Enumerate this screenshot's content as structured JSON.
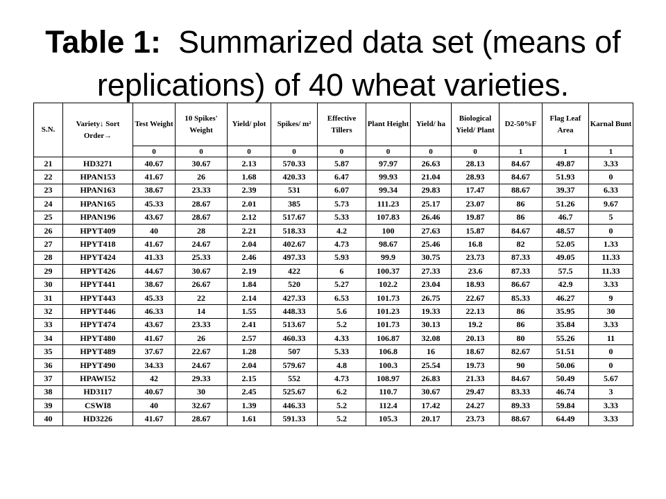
{
  "title": {
    "label": "Table 1:",
    "text": "Summarized data set (means of replications) of 40 wheat varieties."
  },
  "table": {
    "headers": [
      "S.N.",
      "Variety↓ Sort Order→",
      "Test Weight",
      "10 Spikes' Weight",
      "Yield/ plot",
      "Spikes/ m²",
      "Effective Tillers",
      "Plant Height",
      "Yield/ ha",
      "Biological Yield/ Plant",
      "D2-50%F",
      "Flag Leaf Area",
      "Karnal Bunt"
    ],
    "sort_order": [
      "0",
      "0",
      "0",
      "0",
      "0",
      "0",
      "0",
      "0",
      "1",
      "1",
      "1"
    ],
    "rows": [
      [
        "21",
        "HD3271",
        "40.67",
        "30.67",
        "2.13",
        "570.33",
        "5.87",
        "97.97",
        "26.63",
        "28.13",
        "84.67",
        "49.87",
        "3.33"
      ],
      [
        "22",
        "HPAN153",
        "41.67",
        "26",
        "1.68",
        "420.33",
        "6.47",
        "99.93",
        "21.04",
        "28.93",
        "84.67",
        "51.93",
        "0"
      ],
      [
        "23",
        "HPAN163",
        "38.67",
        "23.33",
        "2.39",
        "531",
        "6.07",
        "99.34",
        "29.83",
        "17.47",
        "88.67",
        "39.37",
        "6.33"
      ],
      [
        "24",
        "HPAN165",
        "45.33",
        "28.67",
        "2.01",
        "385",
        "5.73",
        "111.23",
        "25.17",
        "23.07",
        "86",
        "51.26",
        "9.67"
      ],
      [
        "25",
        "HPAN196",
        "43.67",
        "28.67",
        "2.12",
        "517.67",
        "5.33",
        "107.83",
        "26.46",
        "19.87",
        "86",
        "46.7",
        "5"
      ],
      [
        "26",
        "HPYT409",
        "40",
        "28",
        "2.21",
        "518.33",
        "4.2",
        "100",
        "27.63",
        "15.87",
        "84.67",
        "48.57",
        "0"
      ],
      [
        "27",
        "HPYT418",
        "41.67",
        "24.67",
        "2.04",
        "402.67",
        "4.73",
        "98.67",
        "25.46",
        "16.8",
        "82",
        "52.05",
        "1.33"
      ],
      [
        "28",
        "HPYT424",
        "41.33",
        "25.33",
        "2.46",
        "497.33",
        "5.93",
        "99.9",
        "30.75",
        "23.73",
        "87.33",
        "49.05",
        "11.33"
      ],
      [
        "29",
        "HPYT426",
        "44.67",
        "30.67",
        "2.19",
        "422",
        "6",
        "100.37",
        "27.33",
        "23.6",
        "87.33",
        "57.5",
        "11.33"
      ],
      [
        "30",
        "HPYT441",
        "38.67",
        "26.67",
        "1.84",
        "520",
        "5.27",
        "102.2",
        "23.04",
        "18.93",
        "86.67",
        "42.9",
        "3.33"
      ],
      [
        "31",
        "HPYT443",
        "45.33",
        "22",
        "2.14",
        "427.33",
        "6.53",
        "101.73",
        "26.75",
        "22.67",
        "85.33",
        "46.27",
        "9"
      ],
      [
        "32",
        "HPYT446",
        "46.33",
        "14",
        "1.55",
        "448.33",
        "5.6",
        "101.23",
        "19.33",
        "22.13",
        "86",
        "35.95",
        "30"
      ],
      [
        "33",
        "HPYT474",
        "43.67",
        "23.33",
        "2.41",
        "513.67",
        "5.2",
        "101.73",
        "30.13",
        "19.2",
        "86",
        "35.84",
        "3.33"
      ],
      [
        "34",
        "HPYT480",
        "41.67",
        "26",
        "2.57",
        "460.33",
        "4.33",
        "106.87",
        "32.08",
        "20.13",
        "80",
        "55.26",
        "11"
      ],
      [
        "35",
        "HPYT489",
        "37.67",
        "22.67",
        "1.28",
        "507",
        "5.33",
        "106.8",
        "16",
        "18.67",
        "82.67",
        "51.51",
        "0"
      ],
      [
        "36",
        "HPYT490",
        "34.33",
        "24.67",
        "2.04",
        "579.67",
        "4.8",
        "100.3",
        "25.54",
        "19.73",
        "90",
        "50.06",
        "0"
      ],
      [
        "37",
        "HPAWI52",
        "42",
        "29.33",
        "2.15",
        "552",
        "4.73",
        "108.97",
        "26.83",
        "21.33",
        "84.67",
        "50.49",
        "5.67"
      ],
      [
        "38",
        "HD3117",
        "40.67",
        "30",
        "2.45",
        "525.67",
        "6.2",
        "110.7",
        "30.67",
        "29.47",
        "83.33",
        "46.74",
        "3"
      ],
      [
        "39",
        "CSWI8",
        "40",
        "32.67",
        "1.39",
        "446.33",
        "5.2",
        "112.4",
        "17.42",
        "24.27",
        "89.33",
        "59.84",
        "3.33"
      ],
      [
        "40",
        "HD3226",
        "41.67",
        "28.67",
        "1.61",
        "591.33",
        "5.2",
        "105.3",
        "20.17",
        "23.73",
        "88.67",
        "64.49",
        "3.33"
      ]
    ]
  }
}
